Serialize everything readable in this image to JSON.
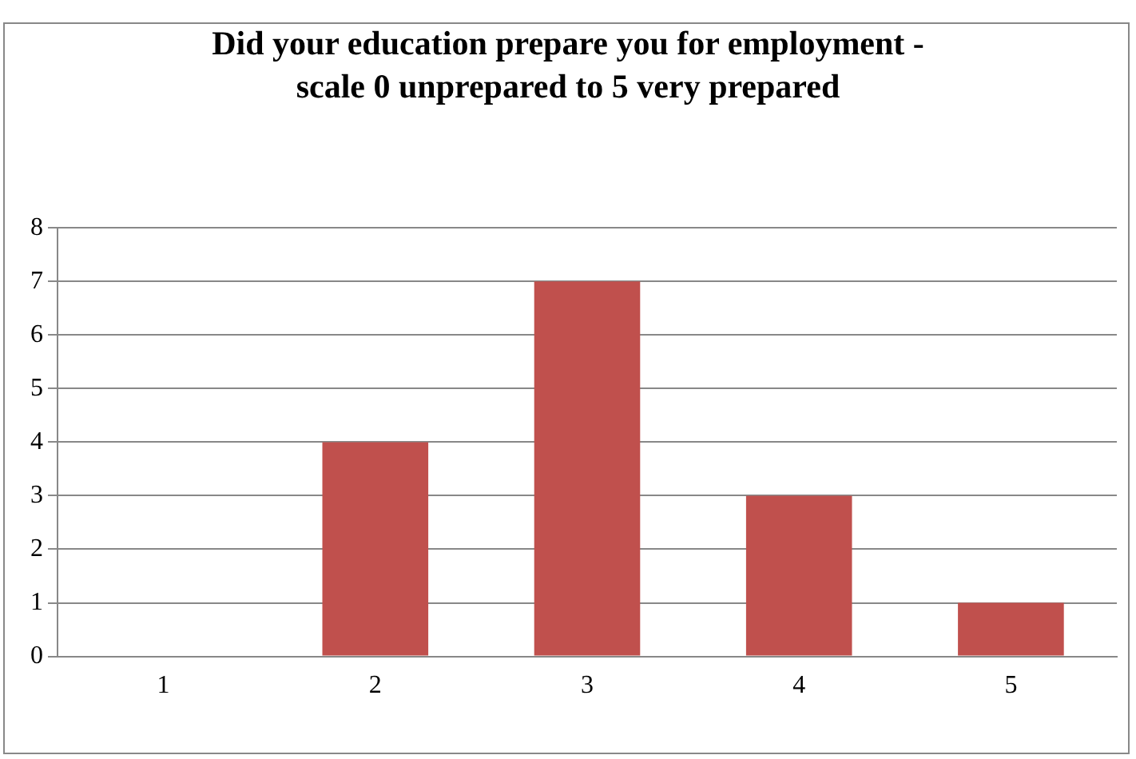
{
  "chart_data": {
    "type": "bar",
    "title": "Did your education prepare you for employment - scale 0 unprepared to 5 very prepared",
    "categories": [
      "1",
      "2",
      "3",
      "4",
      "5"
    ],
    "values": [
      0,
      4,
      7,
      3,
      1
    ],
    "color": "#c0504d",
    "ylim": [
      0,
      8
    ],
    "yticks": [
      0,
      1,
      2,
      3,
      4,
      5,
      6,
      7,
      8
    ],
    "grid": "y",
    "legend": false
  }
}
